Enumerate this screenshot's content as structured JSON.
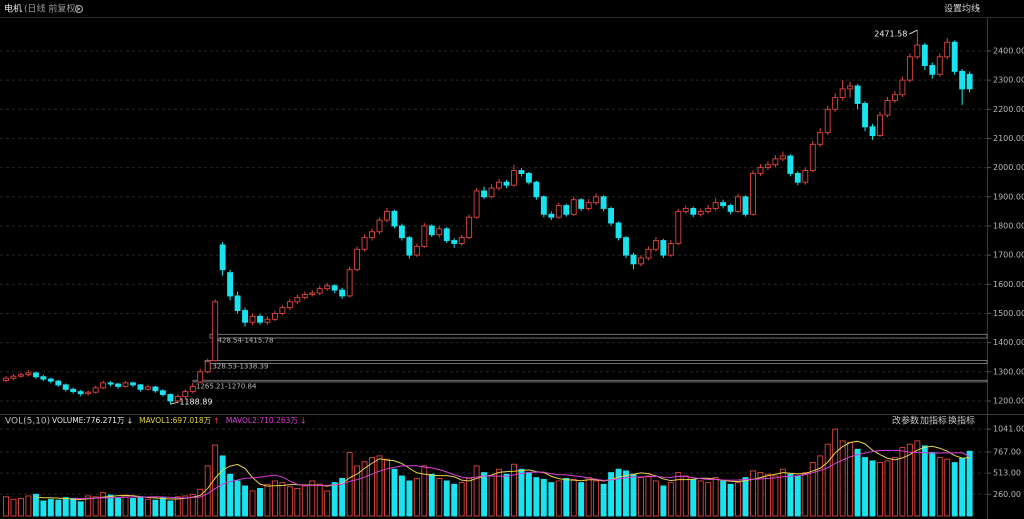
{
  "chart_data": [
    {
      "type": "candlestick",
      "title": "电机",
      "subtitle": "(日线 前复权)",
      "settings_button": "设置均线",
      "up_color": "#e0463e",
      "down_color": "#19e3ee",
      "grid": true,
      "ylim": [
        1169,
        2513
      ],
      "yticks": [
        {
          "value": 1200,
          "label": "1200.00"
        },
        {
          "value": 1300,
          "label": "1300.00"
        },
        {
          "value": 1400,
          "label": "1400.00"
        },
        {
          "value": 1500,
          "label": "1500.00"
        },
        {
          "value": 1600,
          "label": "1600.00"
        },
        {
          "value": 1700,
          "label": "1700.00"
        },
        {
          "value": 1800,
          "label": "1800.00"
        },
        {
          "value": 1900,
          "label": "1900.00"
        },
        {
          "value": 2000,
          "label": "2000.00"
        },
        {
          "value": 2100,
          "label": "2100.00"
        },
        {
          "value": 2200,
          "label": "2200.00"
        },
        {
          "value": 2300,
          "label": "2300.00"
        },
        {
          "value": 2400,
          "label": "2400.00"
        }
      ],
      "gaps": [
        {
          "values": [
            1428.54,
            1415.78
          ],
          "label": "1428.54-1415.78"
        },
        {
          "values": [
            1328.53,
            1338.39
          ],
          "label": "1328.53-1338.39"
        },
        {
          "values": [
            1265.21,
            1270.84
          ],
          "label": "1265.21-1270.84"
        }
      ],
      "open": [
        1270,
        1278,
        1285,
        1290,
        1296,
        1283,
        1275,
        1268,
        1255,
        1240,
        1232,
        1225,
        1230,
        1245,
        1262,
        1258,
        1250,
        1262,
        1255,
        1240,
        1248,
        1235,
        1222,
        1200,
        1215,
        1232,
        1265.21,
        1300,
        1338.39,
        1735,
        1640,
        1560,
        1510,
        1470,
        1490,
        1470,
        1480,
        1500,
        1520,
        1540,
        1555,
        1565,
        1570,
        1585,
        1595,
        1580,
        1560,
        1650,
        1720,
        1760,
        1780,
        1820,
        1850,
        1800,
        1760,
        1700,
        1730,
        1800,
        1770,
        1790,
        1750,
        1740,
        1760,
        1830,
        1920,
        1900,
        1930,
        1950,
        1940,
        1990,
        1980,
        1950,
        1900,
        1840,
        1830,
        1870,
        1840,
        1890,
        1860,
        1880,
        1900,
        1860,
        1810,
        1760,
        1700,
        1670,
        1690,
        1720,
        1750,
        1700,
        1740,
        1850,
        1860,
        1840,
        1850,
        1860,
        1880,
        1870,
        1850,
        1900,
        1840,
        1980,
        2000,
        2010,
        2030,
        2040,
        1980,
        1950,
        1990,
        2080,
        2120,
        2200,
        2240,
        2270,
        2280,
        2220,
        2140,
        2110,
        2180,
        2230,
        2250,
        2300,
        2380,
        2420,
        2350,
        2320,
        2380,
        2430,
        2330,
        2320
      ],
      "high": [
        1285,
        1292,
        1298,
        1305,
        1300,
        1290,
        1280,
        1272,
        1260,
        1246,
        1238,
        1236,
        1252,
        1270,
        1268,
        1262,
        1268,
        1266,
        1258,
        1255,
        1252,
        1240,
        1226,
        1222,
        1240,
        1262,
        1310,
        1345,
        1548,
        1745,
        1650,
        1575,
        1520,
        1500,
        1498,
        1490,
        1510,
        1528,
        1550,
        1565,
        1575,
        1580,
        1595,
        1605,
        1600,
        1588,
        1660,
        1730,
        1772,
        1792,
        1830,
        1862,
        1856,
        1808,
        1765,
        1740,
        1810,
        1805,
        1800,
        1796,
        1758,
        1770,
        1840,
        1930,
        1935,
        1942,
        1962,
        1958,
        2010,
        1998,
        1985,
        1955,
        1905,
        1850,
        1880,
        1876,
        1900,
        1895,
        1892,
        1912,
        1905,
        1866,
        1815,
        1765,
        1708,
        1700,
        1730,
        1762,
        1756,
        1752,
        1858,
        1870,
        1866,
        1860,
        1872,
        1895,
        1890,
        1876,
        1910,
        1905,
        1990,
        2012,
        2022,
        2042,
        2055,
        2046,
        1988,
        2000,
        2092,
        2135,
        2212,
        2255,
        2300,
        2295,
        2286,
        2228,
        2150,
        2192,
        2242,
        2262,
        2312,
        2392,
        2471.58,
        2428,
        2360,
        2392,
        2445,
        2436,
        2338,
        2330
      ],
      "low": [
        1265,
        1272,
        1280,
        1284,
        1276,
        1268,
        1260,
        1248,
        1232,
        1225,
        1216,
        1218,
        1226,
        1240,
        1250,
        1242,
        1246,
        1248,
        1232,
        1235,
        1228,
        1215,
        1188.89,
        1195,
        1208,
        1226,
        1262,
        1295,
        1335,
        1630,
        1545,
        1500,
        1455,
        1460,
        1462,
        1462,
        1474,
        1494,
        1512,
        1532,
        1548,
        1558,
        1562,
        1578,
        1570,
        1550,
        1555,
        1645,
        1712,
        1750,
        1772,
        1812,
        1792,
        1750,
        1688,
        1694,
        1725,
        1762,
        1760,
        1742,
        1725,
        1732,
        1755,
        1825,
        1892,
        1895,
        1922,
        1930,
        1935,
        1970,
        1942,
        1890,
        1830,
        1820,
        1825,
        1832,
        1835,
        1852,
        1852,
        1872,
        1850,
        1800,
        1750,
        1690,
        1652,
        1662,
        1682,
        1712,
        1690,
        1694,
        1735,
        1842,
        1830,
        1832,
        1842,
        1852,
        1860,
        1840,
        1845,
        1832,
        1836,
        1972,
        1992,
        2002,
        2022,
        1970,
        1940,
        1942,
        1985,
        2072,
        2112,
        2190,
        2230,
        2240,
        2200,
        2125,
        2095,
        2105,
        2172,
        2222,
        2242,
        2292,
        2372,
        2335,
        2305,
        2312,
        2372,
        2318,
        2215,
        2258
      ],
      "close": [
        1278,
        1285,
        1290,
        1296,
        1283,
        1275,
        1268,
        1255,
        1240,
        1232,
        1225,
        1230,
        1245,
        1262,
        1258,
        1250,
        1262,
        1255,
        1240,
        1248,
        1235,
        1222,
        1200,
        1215,
        1232,
        1250,
        1300,
        1335,
        1540,
        1650,
        1560,
        1510,
        1470,
        1490,
        1470,
        1480,
        1500,
        1520,
        1540,
        1555,
        1565,
        1570,
        1585,
        1595,
        1580,
        1560,
        1650,
        1720,
        1760,
        1780,
        1820,
        1850,
        1800,
        1760,
        1700,
        1730,
        1800,
        1770,
        1790,
        1750,
        1740,
        1760,
        1830,
        1920,
        1900,
        1930,
        1950,
        1940,
        1990,
        1980,
        1950,
        1900,
        1840,
        1830,
        1870,
        1840,
        1890,
        1860,
        1880,
        1900,
        1860,
        1810,
        1760,
        1700,
        1670,
        1690,
        1720,
        1750,
        1700,
        1740,
        1850,
        1860,
        1840,
        1850,
        1860,
        1880,
        1870,
        1850,
        1900,
        1840,
        1980,
        2000,
        2010,
        2030,
        2040,
        1980,
        1950,
        1990,
        2080,
        2120,
        2200,
        2240,
        2270,
        2280,
        2220,
        2140,
        2110,
        2180,
        2230,
        2250,
        2300,
        2380,
        2420,
        2350,
        2320,
        2380,
        2430,
        2330,
        2270,
        2270
      ]
    },
    {
      "type": "volume",
      "indicator": "VOL(5,10)",
      "buttons": [
        "改参数",
        "加指标",
        "换指标"
      ],
      "ylim": [
        0,
        1150
      ],
      "yticks": [
        {
          "value": 260,
          "label": "260.00"
        },
        {
          "value": 513,
          "label": "513.00"
        },
        {
          "value": 767,
          "label": "767.00"
        },
        {
          "value": 1041,
          "label": "1041.00"
        }
      ],
      "series": [
        {
          "name": "VOLUME:776.271万",
          "trend": "↓",
          "color": "#e8e8e8",
          "values": [
            230,
            200,
            210,
            240,
            260,
            180,
            200,
            190,
            220,
            210,
            170,
            240,
            230,
            280,
            250,
            220,
            250,
            210,
            230,
            200,
            190,
            220,
            180,
            230,
            240,
            260,
            320,
            600,
            850,
            720,
            500,
            420,
            360,
            300,
            330,
            380,
            420,
            400,
            350,
            330,
            360,
            420,
            380,
            300,
            400,
            450,
            760,
            600,
            650,
            700,
            720,
            680,
            560,
            480,
            420,
            450,
            600,
            500,
            450,
            420,
            380,
            400,
            450,
            600,
            520,
            480,
            560,
            500,
            620,
            560,
            520,
            460,
            440,
            400,
            420,
            450,
            440,
            400,
            460,
            420,
            380,
            520,
            560,
            540,
            500,
            460,
            480,
            420,
            360,
            400,
            520,
            480,
            440,
            420,
            400,
            460,
            420,
            380,
            400,
            460,
            540,
            520,
            500,
            480,
            560,
            500,
            480,
            520,
            640,
            720,
            860,
            1040,
            900,
            880,
            800,
            700,
            660,
            640,
            660,
            700,
            820,
            860,
            900,
            840,
            760,
            700,
            680,
            640,
            689,
            776.271
          ]
        },
        {
          "name": "MAVOL1:697.018万",
          "trend": "↑",
          "color": "#e6d34a",
          "values": [
            null,
            null,
            null,
            null,
            228,
            218,
            218,
            214,
            210,
            200,
            198,
            206,
            214,
            226,
            234,
            244,
            246,
            242,
            232,
            222,
            216,
            210,
            204,
            204,
            212,
            226,
            246,
            330,
            454,
            550,
            598,
            618,
            570,
            460,
            382,
            358,
            362,
            366,
            376,
            376,
            372,
            372,
            368,
            358,
            372,
            390,
            458,
            502,
            572,
            632,
            686,
            670,
            662,
            628,
            572,
            518,
            502,
            490,
            484,
            484,
            470,
            430,
            420,
            450,
            474,
            490,
            522,
            532,
            536,
            544,
            552,
            532,
            520,
            476,
            448,
            434,
            430,
            422,
            434,
            434,
            420,
            436,
            468,
            484,
            500,
            516,
            508,
            480,
            444,
            424,
            436,
            436,
            440,
            452,
            452,
            440,
            428,
            416,
            412,
            424,
            440,
            460,
            484,
            500,
            520,
            512,
            504,
            508,
            540,
            572,
            644,
            756,
            832,
            880,
            896,
            864,
            788,
            736,
            692,
            672,
            696,
            736,
            788,
            824,
            836,
            812,
            776,
            724,
            693.8,
            697.018
          ]
        },
        {
          "name": "MAVOL2:710.263万",
          "trend": "↓",
          "color": "#d63fd6",
          "values": [
            null,
            null,
            null,
            null,
            null,
            null,
            null,
            null,
            null,
            214,
            208,
            212,
            214,
            218,
            217,
            221,
            226,
            228,
            229,
            228,
            230,
            228,
            223,
            218,
            217,
            221,
            228,
            267,
            329,
            381,
            412,
            432,
            450,
            457,
            466,
            478,
            490,
            468,
            418,
            379,
            365,
            367,
            367,
            367,
            374,
            381,
            415,
            435,
            465,
            502,
            538,
            564,
            582,
            600,
            602,
            602,
            586,
            576,
            556,
            528,
            494,
            466,
            455,
            467,
            479,
            480,
            476,
            476,
            493,
            509,
            521,
            527,
            526,
            506,
            496,
            493,
            481,
            471,
            455,
            441,
            427,
            433,
            445,
            459,
            467,
            468,
            472,
            474,
            464,
            462,
            476,
            472,
            460,
            448,
            438,
            438,
            432,
            428,
            432,
            438,
            440,
            444,
            450,
            456,
            472,
            476,
            482,
            496,
            520,
            546,
            578,
            630,
            670,
            710,
            734,
            754,
            772,
            784,
            786,
            784,
            780,
            762,
            762,
            758,
            754,
            754,
            756,
            756,
            759,
            710.263
          ]
        }
      ]
    }
  ]
}
